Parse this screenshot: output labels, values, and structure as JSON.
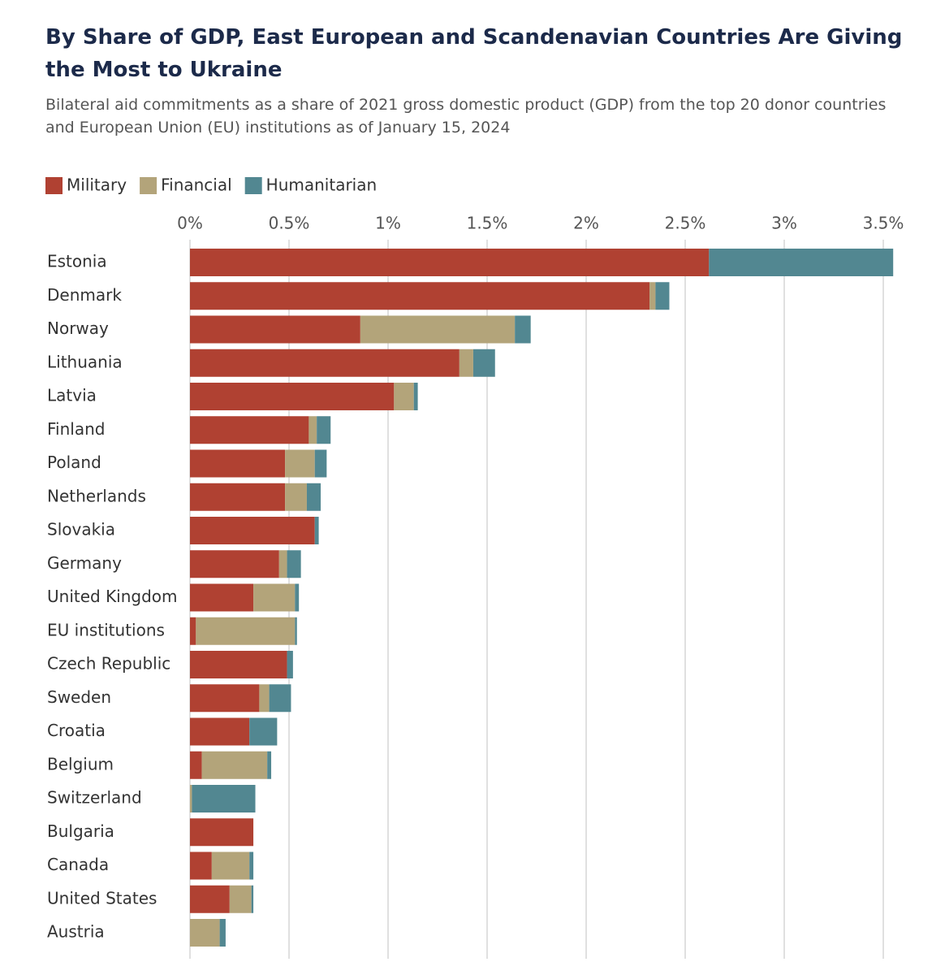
{
  "chart_data": {
    "type": "stacked-bar-horizontal",
    "title": "By Share of GDP, East European and Scandenavian Countries Are Giving the Most to Ukraine",
    "subtitle": "Bilateral aid commitments as a share of 2021 gross domestic product (GDP) from the top 20 donor countries and European Union (EU) institutions as of January 15, 2024",
    "categories": [
      "Estonia",
      "Denmark",
      "Norway",
      "Lithuania",
      "Latvia",
      "Finland",
      "Poland",
      "Netherlands",
      "Slovakia",
      "Germany",
      "United Kingdom",
      "EU institutions",
      "Czech Republic",
      "Sweden",
      "Croatia",
      "Belgium",
      "Switzerland",
      "Bulgaria",
      "Canada",
      "United States",
      "Austria"
    ],
    "series": [
      {
        "name": "Military",
        "color": "#b04132",
        "values": [
          2.62,
          2.32,
          0.86,
          1.36,
          1.03,
          0.6,
          0.48,
          0.48,
          0.63,
          0.45,
          0.32,
          0.03,
          0.49,
          0.35,
          0.3,
          0.06,
          0,
          0.32,
          0.11,
          0.2,
          0
        ]
      },
      {
        "name": "Financial",
        "color": "#b3a47a",
        "values": [
          0,
          0.03,
          0.78,
          0.07,
          0.1,
          0.04,
          0.15,
          0.11,
          0,
          0.04,
          0.21,
          0.5,
          0,
          0.05,
          0,
          0.33,
          0.01,
          0,
          0.19,
          0.11,
          0.15
        ]
      },
      {
        "name": "Humanitarian",
        "color": "#528791",
        "values": [
          0.93,
          0.07,
          0.08,
          0.11,
          0.02,
          0.07,
          0.06,
          0.07,
          0.02,
          0.07,
          0.02,
          0.01,
          0.03,
          0.11,
          0.14,
          0.02,
          0.32,
          0,
          0.02,
          0.01,
          0.03
        ]
      }
    ],
    "xlim": [
      0,
      3.6
    ],
    "xticks": [
      {
        "value": 0,
        "label": "0%"
      },
      {
        "value": 0.5,
        "label": "0.5%"
      },
      {
        "value": 1,
        "label": "1%"
      },
      {
        "value": 1.5,
        "label": "1.5%"
      },
      {
        "value": 2,
        "label": "2%"
      },
      {
        "value": 2.5,
        "label": "2.5%"
      },
      {
        "value": 3,
        "label": "3%"
      },
      {
        "value": 3.5,
        "label": "3.5%"
      }
    ],
    "grid": true,
    "legend": "top-left"
  }
}
